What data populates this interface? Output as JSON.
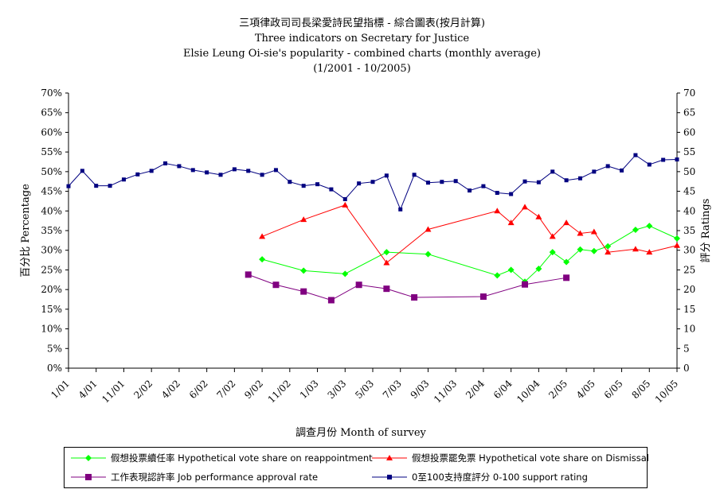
{
  "title_lines": [
    "三項律政司司長梁愛詩民望指標 - 綜合圖表(按月計算)",
    "Three indicators on Secretary for Justice",
    "Elsie Leung Oi-sie's popularity - combined charts (monthly average)",
    "(1/2001 - 10/2005)"
  ],
  "chart_data": {
    "type": "line",
    "title": "三項律政司司長梁愛詩民望指標 - 綜合圖表(按月計算) Three indicators on Secretary for Justice Elsie Leung Oi-sie's popularity - combined charts (monthly average) (1/2001 - 10/2005)",
    "xlabel": "調查月份  Month of survey",
    "ylabel_left": "百分比  Percentage",
    "ylabel_right": "評分  Ratings",
    "ylim_left": [
      0,
      70
    ],
    "ylim_right": [
      0,
      70
    ],
    "left_ticks": [
      "0%",
      "5%",
      "10%",
      "15%",
      "20%",
      "25%",
      "30%",
      "35%",
      "40%",
      "45%",
      "50%",
      "55%",
      "60%",
      "65%",
      "70%"
    ],
    "right_ticks": [
      "0",
      "5",
      "10",
      "15",
      "20",
      "25",
      "30",
      "35",
      "40",
      "45",
      "50",
      "55",
      "60",
      "65",
      "70"
    ],
    "x_ticks": [
      "1/01",
      "4/01",
      "11/01",
      "2/02",
      "4/02",
      "6/02",
      "7/02",
      "9/02",
      "11/02",
      "1/03",
      "3/03",
      "5/03",
      "7/03",
      "9/03",
      "11/03",
      "2/04",
      "6/04",
      "10/04",
      "2/05",
      "4/05",
      "6/05",
      "8/05",
      "10/05"
    ],
    "x_domain": [
      0,
      44
    ],
    "x_tick_index": [
      0,
      1,
      2,
      3,
      4,
      5,
      6,
      7,
      8,
      9,
      10,
      11,
      12,
      13,
      14,
      15,
      16,
      17,
      18,
      19,
      20,
      21,
      22
    ],
    "grid": false,
    "legend_position": "bottom",
    "series": [
      {
        "name": "假想投票續任率 Hypothetical vote share on reappointment",
        "color": "#00ff00",
        "marker": "diamond",
        "axis": "left",
        "points": [
          [
            14,
            27.7
          ],
          [
            17,
            24.8
          ],
          [
            20,
            24.0
          ],
          [
            23,
            29.5
          ],
          [
            26,
            29.0
          ],
          [
            31,
            23.6
          ],
          [
            32,
            25.0
          ],
          [
            33,
            22.0
          ],
          [
            34,
            25.3
          ],
          [
            35,
            29.5
          ],
          [
            36,
            27.0
          ],
          [
            37,
            30.2
          ],
          [
            38,
            29.8
          ],
          [
            39,
            31.0
          ],
          [
            41,
            35.2
          ],
          [
            42,
            36.2
          ],
          [
            44,
            33.0
          ]
        ]
      },
      {
        "name": "假想投票罷免票 Hypothetical vote share on Dismissal",
        "color": "#ff0000",
        "marker": "triangle",
        "axis": "left",
        "points": [
          [
            14,
            33.5
          ],
          [
            17,
            37.8
          ],
          [
            20,
            41.5
          ],
          [
            23,
            26.8
          ],
          [
            26,
            35.3
          ],
          [
            31,
            40.0
          ],
          [
            32,
            37.0
          ],
          [
            33,
            41.0
          ],
          [
            34,
            38.5
          ],
          [
            35,
            33.5
          ],
          [
            36,
            37.0
          ],
          [
            37,
            34.3
          ],
          [
            38,
            34.7
          ],
          [
            39,
            29.5
          ],
          [
            41,
            30.3
          ],
          [
            42,
            29.5
          ],
          [
            44,
            31.2
          ]
        ]
      },
      {
        "name": "工作表現認許率 Job performance approval rate",
        "color": "#800080",
        "marker": "square",
        "axis": "left",
        "points": [
          [
            13,
            23.8
          ],
          [
            15,
            21.2
          ],
          [
            17,
            19.5
          ],
          [
            19,
            17.3
          ],
          [
            21,
            21.2
          ],
          [
            23,
            20.2
          ],
          [
            25,
            18.0
          ],
          [
            30,
            18.2
          ],
          [
            33,
            21.3
          ],
          [
            36,
            23.0
          ]
        ]
      },
      {
        "name": "0至100支持度評分 0-100 support rating",
        "color": "#000080",
        "marker": "square",
        "axis": "right",
        "points": [
          [
            0,
            46.3
          ],
          [
            1,
            50.2
          ],
          [
            2,
            46.4
          ],
          [
            3,
            46.4
          ],
          [
            4,
            48.0
          ],
          [
            5,
            49.3
          ],
          [
            6,
            50.2
          ],
          [
            7,
            52.1
          ],
          [
            8,
            51.4
          ],
          [
            9,
            50.4
          ],
          [
            10,
            49.8
          ],
          [
            11,
            49.2
          ],
          [
            12,
            50.6
          ],
          [
            13,
            50.2
          ],
          [
            14,
            49.2
          ],
          [
            15,
            50.4
          ],
          [
            16,
            47.4
          ],
          [
            17,
            46.4
          ],
          [
            18,
            46.8
          ],
          [
            19,
            45.5
          ],
          [
            20,
            43.0
          ],
          [
            21,
            47.0
          ],
          [
            22,
            47.4
          ],
          [
            23,
            49.0
          ],
          [
            24,
            40.4
          ],
          [
            25,
            49.2
          ],
          [
            26,
            47.2
          ],
          [
            27,
            47.4
          ],
          [
            28,
            47.6
          ],
          [
            29,
            45.2
          ],
          [
            30,
            46.3
          ],
          [
            31,
            44.6
          ],
          [
            32,
            44.3
          ],
          [
            33,
            47.5
          ],
          [
            34,
            47.3
          ],
          [
            35,
            50.0
          ],
          [
            36,
            47.8
          ],
          [
            37,
            48.3
          ],
          [
            38,
            50.0
          ],
          [
            39,
            51.4
          ],
          [
            40,
            50.3
          ],
          [
            41,
            54.2
          ],
          [
            42,
            51.8
          ],
          [
            43,
            53.0
          ],
          [
            44,
            53.1
          ]
        ]
      }
    ]
  },
  "legend": [
    {
      "label": "假想投票續任率 Hypothetical vote share on reappointment"
    },
    {
      "label": "假想投票罷免票 Hypothetical vote share on Dismissal"
    },
    {
      "label": "工作表現認許率 Job performance approval rate"
    },
    {
      "label": "0至100支持度評分 0-100 support rating"
    }
  ]
}
